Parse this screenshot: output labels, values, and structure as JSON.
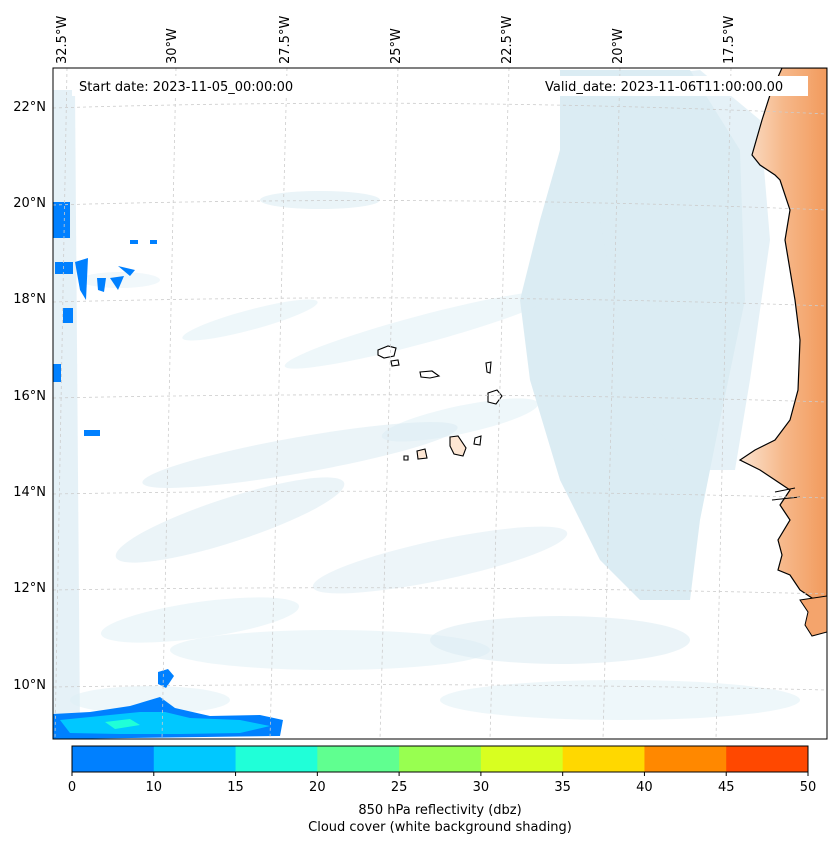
{
  "map": {
    "start_date_label": "Start date: 2023-11-05_00:00:00",
    "valid_date_label": "Valid_date: 2023-11-06T11:00:00.00",
    "longitude_labels": [
      "32.5°W",
      "30°W",
      "27.5°W",
      "25°W",
      "22.5°W",
      "20°W",
      "17.5°W"
    ],
    "latitude_labels": [
      "22°N",
      "20°N",
      "18°N",
      "16°N",
      "14°N",
      "12°N",
      "10°N"
    ],
    "features": {
      "land_regions": [
        "west-africa-coast",
        "cape-verde-islands"
      ],
      "reflectivity_areas": "western-edge-and-southwest-band",
      "cloud_cover": "light-blue-shading"
    }
  },
  "colorbar": {
    "ticks": [
      "0",
      "10",
      "15",
      "20",
      "25",
      "30",
      "35",
      "40",
      "45",
      "50"
    ],
    "colors": [
      "#0080ff",
      "#00c8ff",
      "#20ffd8",
      "#60ff90",
      "#98ff50",
      "#d8ff20",
      "#ffd800",
      "#ff8800",
      "#ff4800"
    ],
    "label_line1": "850 hPa reflectivity (dbz)",
    "label_line2": "Cloud cover (white background shading)"
  },
  "style": {
    "ocean_color": "#ffffff",
    "cloud_color": "#c8e4ee",
    "land_color": "#f6a870",
    "coast_color": "#000000",
    "grid_color": "#d0d0d0"
  }
}
